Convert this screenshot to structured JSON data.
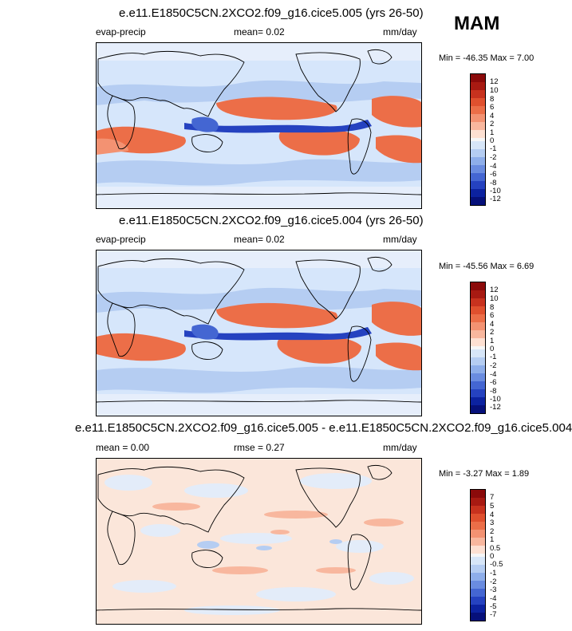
{
  "season": "MAM",
  "panels": [
    {
      "title": "e.e11.E1850C5CN.2XCO2.f09_g16.cice5.005 (yrs 26-50)",
      "left_label": "evap-precip",
      "center_label": "mean=  0.02",
      "units": "mm/day",
      "minmax": "Min = -46.35 Max =   7.00",
      "colorbar_labels": [
        "12",
        "10",
        "8",
        "6",
        "4",
        "2",
        "1",
        "0",
        "-1",
        "-2",
        "-4",
        "-6",
        "-8",
        "-10",
        "-12"
      ],
      "kind": "field"
    },
    {
      "title": "e.e11.E1850C5CN.2XCO2.f09_g16.cice5.004 (yrs 26-50)",
      "left_label": "evap-precip",
      "center_label": "mean=  0.02",
      "units": "mm/day",
      "minmax": "Min = -45.56 Max =   6.69",
      "colorbar_labels": [
        "12",
        "10",
        "8",
        "6",
        "4",
        "2",
        "1",
        "0",
        "-1",
        "-2",
        "-4",
        "-6",
        "-8",
        "-10",
        "-12"
      ],
      "kind": "field"
    },
    {
      "title": "e.e11.E1850C5CN.2XCO2.f09_g16.cice5.005 - e.e11.E1850C5CN.2XCO2.f09_g16.cice5.004",
      "left_label": "mean =  0.00",
      "center_label": "rmse =  0.27",
      "units": "mm/day",
      "minmax": "Min = -3.27 Max =  1.89",
      "colorbar_labels": [
        "7",
        "5",
        "4",
        "3",
        "2",
        "1",
        "0.5",
        "0",
        "-0.5",
        "-1",
        "-2",
        "-3",
        "-4",
        "-5",
        "-7"
      ],
      "kind": "diff"
    }
  ],
  "colors": {
    "scale": [
      "#8b0a0a",
      "#a81a12",
      "#c8321e",
      "#e0502e",
      "#ec6e48",
      "#f39272",
      "#f8b79e",
      "#fde0d2",
      "#f6f6f6",
      "#d7e6f8",
      "#b5cdf2",
      "#8eaeea",
      "#6a8ce0",
      "#4466d2",
      "#2542c0",
      "#0c22a0",
      "#06107a"
    ],
    "ocean_base": "#d6e6fb",
    "coast": "#000000"
  }
}
